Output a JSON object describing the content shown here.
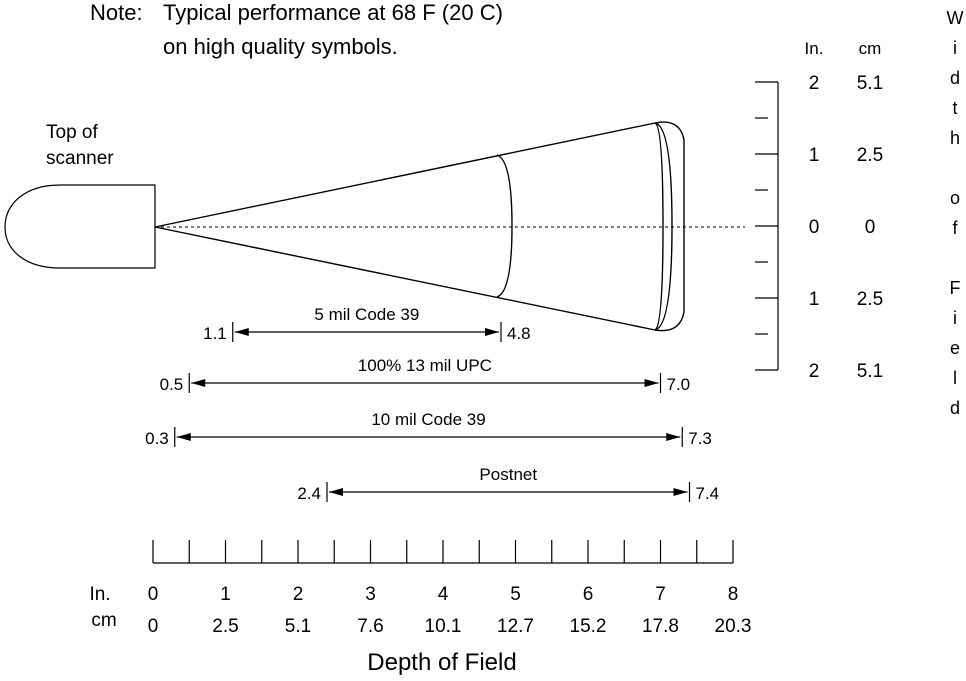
{
  "note": {
    "prefix": "Note:",
    "line1": "Typical performance at 68 F (20 C)",
    "line2": "on high quality symbols."
  },
  "scanner_label": [
    "Top of",
    "scanner"
  ],
  "ranges": [
    {
      "name": "5 mil Code 39",
      "min": "1.1",
      "max": "4.8"
    },
    {
      "name": "100% 13 mil UPC",
      "min": "0.5",
      "max": "7.0"
    },
    {
      "name": "10 mil Code 39",
      "min": "0.3",
      "max": "7.3"
    },
    {
      "name": "Postnet",
      "min": "2.4",
      "max": "7.4"
    }
  ],
  "depth_axis": {
    "title": "Depth of Field",
    "unit_in": "In.",
    "unit_cm": "cm",
    "inches": [
      "0",
      "1",
      "2",
      "3",
      "4",
      "5",
      "6",
      "7",
      "8"
    ],
    "cm": [
      "0",
      "2.5",
      "5.1",
      "7.6",
      "10.1",
      "12.7",
      "15.2",
      "17.8",
      "20.3"
    ]
  },
  "width_axis": {
    "title": "Width of Field",
    "unit_in": "In.",
    "unit_cm": "cm",
    "inches": [
      "2",
      "1",
      "0",
      "1",
      "2"
    ],
    "cm": [
      "5.1",
      "2.5",
      "0",
      "2.5",
      "5.1"
    ]
  }
}
